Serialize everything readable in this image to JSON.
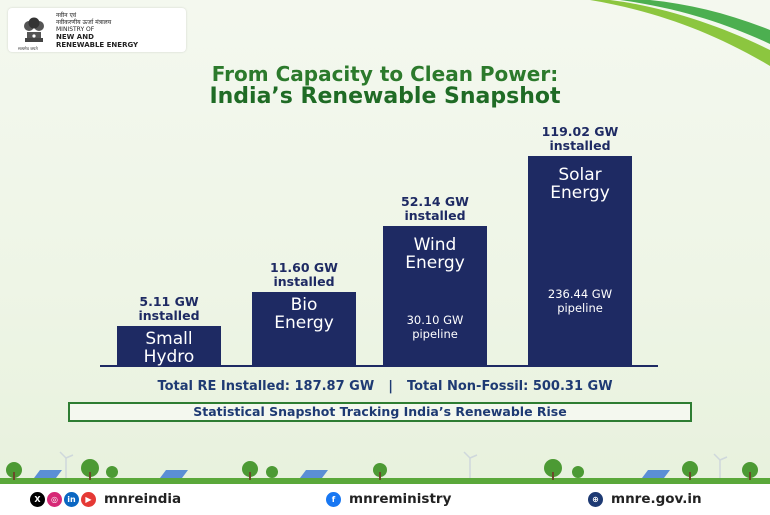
{
  "logo": {
    "hindi_line1": "नवीन एवं",
    "hindi_line2": "नवीकरणीय ऊर्जा मंत्रालय",
    "line1": "MINISTRY OF",
    "line2": "NEW AND",
    "line3": "RENEWABLE ENERGY",
    "motto": "सत्यमेव जयते"
  },
  "heading": {
    "line1": "From Capacity to Clean Power:",
    "line2": "India’s Renewable Snapshot"
  },
  "chart_data": {
    "type": "bar",
    "categories": [
      "Small Hydro",
      "Bio Energy",
      "Wind Energy",
      "Solar Energy"
    ],
    "series": [
      {
        "values": [
          5.11,
          11.6,
          52.14,
          119.02
        ]
      }
    ],
    "bars": [
      {
        "name_lines": [
          "Small",
          "Hydro"
        ],
        "installed": 5.11,
        "label_line1": "5.11 GW",
        "label_line2": "installed",
        "pipeline_lines": []
      },
      {
        "name_lines": [
          "Bio",
          "Energy"
        ],
        "installed": 11.6,
        "label_line1": "11.60 GW",
        "label_line2": "installed",
        "pipeline_lines": []
      },
      {
        "name_lines": [
          "Wind",
          "Energy"
        ],
        "installed": 52.14,
        "label_line1": "52.14 GW",
        "label_line2": "installed",
        "pipeline": 30.1,
        "pipeline_lines": [
          "30.10 GW",
          "pipeline"
        ]
      },
      {
        "name_lines": [
          "Solar",
          "Energy"
        ],
        "installed": 119.02,
        "label_line1": "119.02 GW",
        "label_line2": "installed",
        "pipeline": 236.44,
        "pipeline_lines": [
          "236.44 GW",
          "pipeline"
        ]
      }
    ],
    "bar_color": "#1e2a63",
    "title": "From Capacity to Clean Power: India’s Renewable Snapshot"
  },
  "totals": {
    "installed": "Total RE Installed: 187.87 GW",
    "separator": "|",
    "non_fossil": "Total Non-Fossil: 500.31 GW"
  },
  "snapshot_tagline": "Statistical Snapshot Tracking India’s Renewable Rise",
  "footer": {
    "handle1": "mnreindia",
    "handle2": "mnreministry",
    "website": "mnre.gov.in",
    "icons": [
      "x-icon",
      "instagram-icon",
      "linkedin-icon",
      "youtube-icon",
      "facebook-icon",
      "globe-icon"
    ]
  },
  "colors": {
    "title_green": "#2c7a2c",
    "navy": "#1e3a73",
    "bar": "#1e2a63",
    "box_green": "#2e7d32"
  }
}
